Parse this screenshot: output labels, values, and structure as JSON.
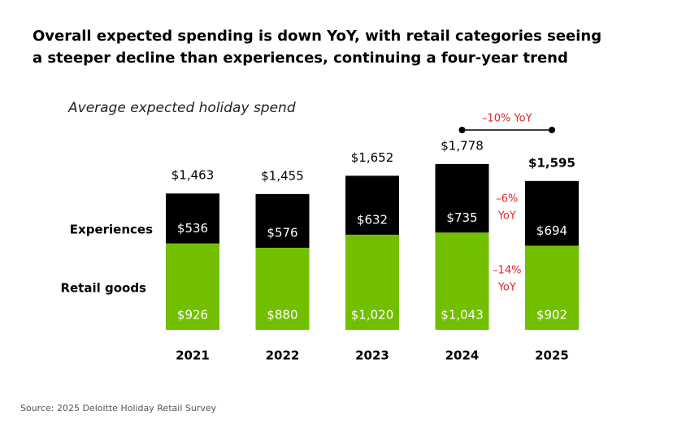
{
  "chart_data": {
    "type": "stacked-bar",
    "title": [
      "Overall expected spending is down YoY, with retail categories seeing",
      "a steeper decline than experiences, continuing a four-year trend"
    ],
    "subtitle": "Average expected holiday spend",
    "source": "Source: 2025 Deloitte Holiday Retail Survey",
    "categories": [
      "2021",
      "2022",
      "2023",
      "2024",
      "2025"
    ],
    "series": [
      {
        "name": "Retail goods",
        "color": "#72bf00",
        "values": [
          926,
          880,
          1020,
          1043,
          902
        ],
        "value_labels": [
          "$926",
          "$880",
          "$1,020",
          "$1,043",
          "$902"
        ]
      },
      {
        "name": "Experiences",
        "color": "#000000",
        "values": [
          536,
          576,
          632,
          735,
          694
        ],
        "value_labels": [
          "$536",
          "$576",
          "$632",
          "$735",
          "$694"
        ]
      }
    ],
    "totals": [
      1463,
      1455,
      1652,
      1778,
      1595
    ],
    "total_labels": [
      "$1,463",
      "$1,455",
      "$1,652",
      "$1,778",
      "$1,595"
    ],
    "yoy_total": "–10% YoY",
    "yoy_experiences": [
      "–6%",
      "YoY"
    ],
    "yoy_retail": [
      "–14%",
      "YoY"
    ]
  }
}
